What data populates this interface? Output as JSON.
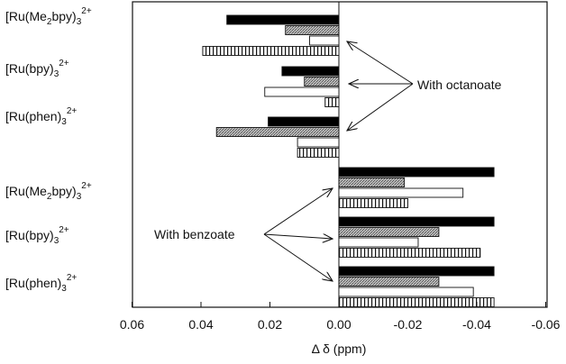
{
  "chart_data": {
    "type": "bar",
    "orientation": "horizontal",
    "xlabel": "Δ δ (ppm)",
    "x_reversed": true,
    "xlim": [
      0.06,
      -0.06
    ],
    "xticks": [
      0.06,
      0.04,
      0.02,
      0.0,
      -0.02,
      -0.04,
      -0.06
    ],
    "xtick_labels": [
      "0.06",
      "0.04",
      "0.02",
      "0.00",
      "-0.02",
      "-0.04",
      "-0.06"
    ],
    "grid": false,
    "series_styles": [
      "solid-black",
      "stippled-gray",
      "open-white",
      "vertical-hatch"
    ],
    "groups": [
      {
        "label_base": "[Ru(Me",
        "label_sub": "2",
        "label_mid": "bpy)",
        "label_sub2": "3",
        "label_sup": "2+",
        "values": [
          0.0325,
          0.0155,
          0.0085,
          0.0395
        ]
      },
      {
        "label_base": "[Ru(bpy)",
        "label_sub": "3",
        "label_mid": "",
        "label_sub2": "",
        "label_sup": "2+",
        "values": [
          0.0165,
          0.01,
          0.0215,
          0.004
        ]
      },
      {
        "label_base": "[Ru(phen)",
        "label_sub": "3",
        "label_mid": "",
        "label_sub2": "",
        "label_sup": "2+",
        "values": [
          0.0205,
          0.0355,
          0.012,
          0.012
        ]
      },
      {
        "label_base": "[Ru(Me",
        "label_sub": "2",
        "label_mid": "bpy)",
        "label_sub2": "3",
        "label_sup": "2+",
        "values": [
          -0.045,
          -0.019,
          -0.036,
          -0.02
        ]
      },
      {
        "label_base": "[Ru(bpy)",
        "label_sub": "3",
        "label_mid": "",
        "label_sub2": "",
        "label_sup": "2+",
        "values": [
          -0.045,
          -0.029,
          -0.023,
          -0.041
        ]
      },
      {
        "label_base": "[Ru(phen)",
        "label_sub": "3",
        "label_mid": "",
        "label_sub2": "",
        "label_sup": "2+",
        "values": [
          -0.045,
          -0.029,
          -0.039,
          -0.045
        ]
      }
    ],
    "annotations": [
      {
        "text": "With octanoate",
        "points_to_groups": [
          0,
          1,
          2
        ]
      },
      {
        "text": "With benzoate",
        "points_to_groups": [
          3,
          4,
          5
        ]
      }
    ]
  }
}
